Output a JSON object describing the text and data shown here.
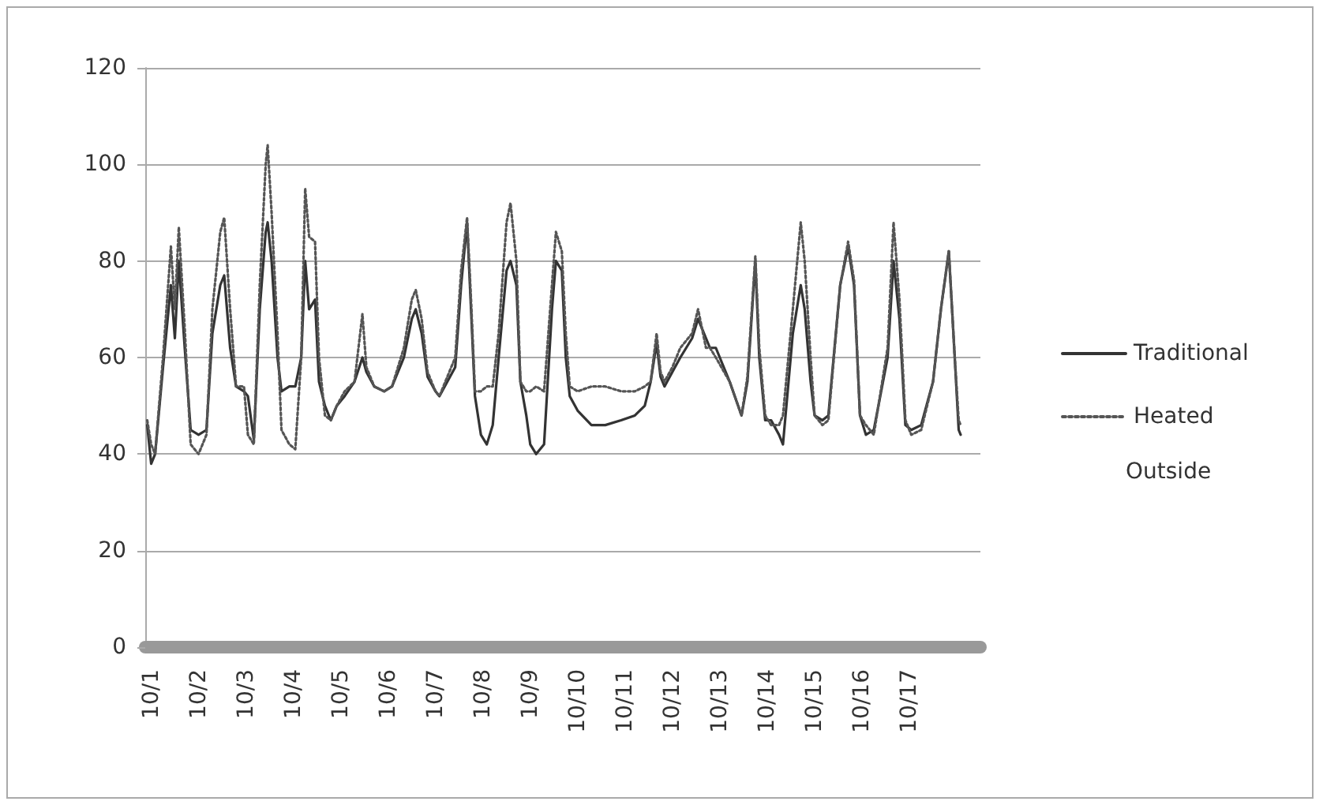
{
  "chart_data": {
    "type": "line",
    "x": [
      "--09-30T22:00",
      "--10-01T00:00",
      "--10-01T02:00",
      "--10-01T06:00",
      "--10-01T10:00",
      "--10-01T12:00",
      "--10-01T14:00",
      "--10-01T17:00",
      "--10-01T20:00",
      "--10-02T00:00",
      "--10-02T04:00",
      "--10-02T07:00",
      "--10-02T11:00",
      "--10-02T13:00",
      "--10-02T16:00",
      "--10-02T19:00",
      "--10-02T23:00",
      "--10-03T01:00",
      "--10-03T04:00",
      "--10-03T07:00",
      "--10-03T10:00",
      "--10-03T11:00",
      "--10-03T13:00",
      "--10-03T16:00",
      "--10-03T18:00",
      "--10-03T22:00",
      "--10-04T01:00",
      "--10-04T04:00",
      "--10-04T06:00",
      "--10-04T08:00",
      "--10-04T11:00",
      "--10-04T13:00",
      "--10-04T16:00",
      "--10-04T19:00",
      "--10-04T22:00",
      "--10-05T02:00",
      "--10-05T07:00",
      "--10-05T11:00",
      "--10-05T13:00",
      "--10-05T17:00",
      "--10-05T22:00",
      "--10-06T02:00",
      "--10-06T08:00",
      "--10-06T12:00",
      "--10-06T14:00",
      "--10-06T17:00",
      "--10-06T20:00",
      "--10-07T00:00",
      "--10-07T02:00",
      "--10-07T10:00",
      "--10-07T13:00",
      "--10-07T16:00",
      "--10-07T18:00",
      "--10-07T20:00",
      "--10-07T23:00",
      "--10-08T02:00",
      "--10-08T05:00",
      "--10-08T08:00",
      "--10-08T12:00",
      "--10-08T14:00",
      "--10-08T17:00",
      "--10-08T19:00",
      "--10-08T22:00",
      "--10-09T00:00",
      "--10-09T03:00",
      "--10-09T07:00",
      "--10-09T11:00",
      "--10-09T13:00",
      "--10-09T16:00",
      "--10-09T18:00",
      "--10-09T20:00",
      "--10-10T00:00",
      "--10-10T07:00",
      "--10-10T14:00",
      "--10-10T22:00",
      "--10-11T05:00",
      "--10-11T10:00",
      "--10-11T13:00",
      "--10-11T16:00",
      "--10-11T18:00",
      "--10-11T20:00",
      "--10-12T00:00",
      "--10-12T04:00",
      "--10-12T10:00",
      "--10-12T13:00",
      "--10-12T17:00",
      "--10-12T19:00",
      "--10-12T22:00",
      "--10-13T05:00",
      "--10-13T11:00",
      "--10-13T14:00",
      "--10-13T18:00",
      "--10-13T20:00",
      "--10-13T23:00",
      "--10-14T02:00",
      "--10-14T06:00",
      "--10-14T08:00",
      "--10-14T13:00",
      "--10-14T17:00",
      "--10-14T19:00",
      "--10-14T22:00",
      "--10-15T00:00",
      "--10-15T04:00",
      "--10-15T07:00",
      "--10-15T13:00",
      "--10-15T17:00",
      "--10-15T20:00",
      "--10-15T23:00",
      "--10-16T02:00",
      "--10-16T06:00",
      "--10-16T13:00",
      "--10-16T16:00",
      "--10-16T19:00",
      "--10-16T22:00",
      "--10-17T01:00",
      "--10-17T06:00",
      "--10-17T12:00",
      "--10-17T16:00",
      "--10-17T20:00",
      "--10-17T23:00",
      "--10-18T01:00",
      "--10-18T02:00"
    ],
    "series": [
      {
        "name": "Traditional",
        "color": "#333333",
        "line_style": "solid",
        "values": [
          46,
          38,
          40,
          58,
          75,
          64,
          80,
          62,
          45,
          44,
          45,
          65,
          75,
          77,
          62,
          54,
          53,
          52,
          43,
          70,
          86,
          88,
          80,
          60,
          53,
          54,
          54,
          60,
          80,
          70,
          72,
          55,
          50,
          47,
          50,
          52,
          55,
          60,
          57,
          54,
          53,
          54,
          60,
          68,
          70,
          65,
          56,
          53,
          52,
          58,
          75,
          88,
          70,
          52,
          44,
          42,
          46,
          60,
          78,
          80,
          75,
          55,
          48,
          42,
          40,
          42,
          70,
          80,
          78,
          60,
          52,
          49,
          46,
          46,
          47,
          48,
          50,
          55,
          63,
          56,
          54,
          57,
          60,
          64,
          68,
          64,
          62,
          62,
          55,
          48,
          55,
          80,
          60,
          47,
          47,
          44,
          42,
          65,
          75,
          70,
          55,
          48,
          47,
          48,
          75,
          83,
          75,
          48,
          44,
          45,
          60,
          80,
          68,
          46,
          45,
          46,
          55,
          70,
          82,
          60,
          45,
          44
        ]
      },
      {
        "name": "Heated",
        "color": "#555555",
        "line_style": "dotted",
        "values": [
          47,
          42,
          40,
          60,
          83,
          70,
          87,
          66,
          42,
          40,
          44,
          70,
          86,
          89,
          70,
          54,
          54,
          44,
          42,
          75,
          100,
          104,
          90,
          65,
          45,
          42,
          41,
          60,
          95,
          85,
          84,
          60,
          48,
          47,
          50,
          53,
          55,
          69,
          58,
          54,
          53,
          54,
          62,
          72,
          74,
          68,
          57,
          53,
          52,
          60,
          78,
          89,
          72,
          53,
          53,
          54,
          54,
          65,
          88,
          92,
          80,
          55,
          53,
          53,
          54,
          53,
          75,
          86,
          82,
          65,
          54,
          53,
          54,
          54,
          53,
          53,
          54,
          55,
          65,
          57,
          55,
          58,
          62,
          65,
          70,
          62,
          62,
          60,
          55,
          48,
          56,
          81,
          62,
          48,
          46,
          46,
          48,
          70,
          88,
          80,
          60,
          48,
          46,
          47,
          75,
          84,
          76,
          48,
          46,
          44,
          62,
          88,
          72,
          47,
          44,
          45,
          55,
          70,
          82,
          60,
          47,
          46
        ]
      }
    ],
    "annotations": [
      "Outside"
    ],
    "xlim": [
      "--09-30T21:00",
      "--10-18T12:00"
    ],
    "xticks": [
      {
        "value": "--10-01",
        "label": "10/1"
      },
      {
        "value": "--10-02",
        "label": "10/2"
      },
      {
        "value": "--10-03",
        "label": "10/3"
      },
      {
        "value": "--10-04",
        "label": "10/4"
      },
      {
        "value": "--10-05",
        "label": "10/5"
      },
      {
        "value": "--10-06",
        "label": "10/6"
      },
      {
        "value": "--10-07",
        "label": "10/7"
      },
      {
        "value": "--10-08",
        "label": "10/8"
      },
      {
        "value": "--10-09",
        "label": "10/9"
      },
      {
        "value": "--10-10",
        "label": "10/10"
      },
      {
        "value": "--10-11",
        "label": "10/11"
      },
      {
        "value": "--10-12",
        "label": "10/12"
      },
      {
        "value": "--10-13",
        "label": "10/13"
      },
      {
        "value": "--10-14",
        "label": "10/14"
      },
      {
        "value": "--10-15",
        "label": "10/15"
      },
      {
        "value": "--10-16",
        "label": "10/16"
      },
      {
        "value": "--10-17",
        "label": "10/17"
      }
    ],
    "ylim": [
      0,
      120
    ],
    "yticks": [
      0,
      20,
      40,
      60,
      80,
      100,
      120
    ],
    "grid": "y",
    "legend": "right",
    "marker": "none"
  }
}
